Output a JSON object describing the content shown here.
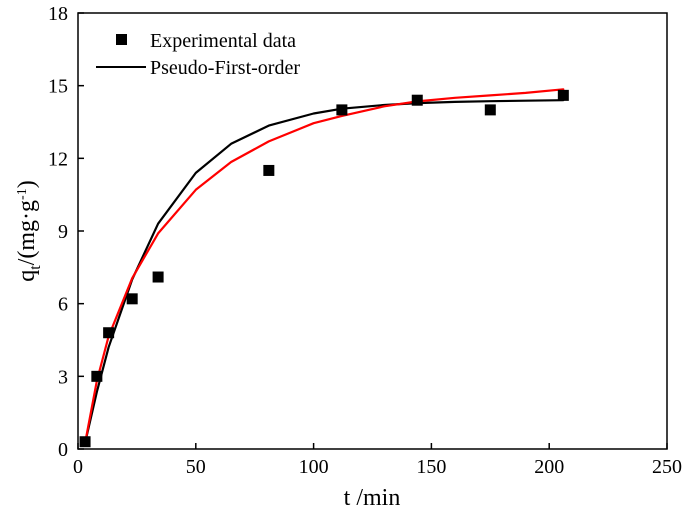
{
  "chart_data": {
    "type": "scatter",
    "title": "",
    "xlabel": "t /min",
    "ylabel_base": "q",
    "ylabel_sub": "t",
    "ylabel_unit": "/(mg·g",
    "ylabel_unit_sup": "-1",
    "ylabel_unit_close": ")",
    "xlim": [
      0,
      250
    ],
    "ylim": [
      0,
      18
    ],
    "xticks": [
      0,
      50,
      100,
      150,
      200,
      250
    ],
    "yticks": [
      0,
      3,
      6,
      9,
      12,
      15,
      18
    ],
    "legend_position": "top-left",
    "series": [
      {
        "name": "Experimental data",
        "kind": "scatter",
        "marker": "square",
        "color": "#000000",
        "x": [
          3,
          8,
          13,
          23,
          34,
          81,
          112,
          144,
          175,
          206
        ],
        "y": [
          0.3,
          3.0,
          4.8,
          6.2,
          7.1,
          11.5,
          14.0,
          14.4,
          14.0,
          14.6
        ]
      },
      {
        "name": "Pseudo-First-order",
        "kind": "line",
        "color": "#000000",
        "x": [
          3,
          8,
          13,
          23,
          34,
          50,
          65,
          81,
          100,
          112,
          130,
          144,
          160,
          175,
          190,
          206
        ],
        "y": [
          0.25,
          2.35,
          4.2,
          7.0,
          9.3,
          11.4,
          12.6,
          13.35,
          13.85,
          14.05,
          14.2,
          14.28,
          14.33,
          14.36,
          14.38,
          14.4
        ]
      },
      {
        "name": "",
        "kind": "line",
        "color": "#ff0000",
        "x": [
          3,
          8,
          13,
          23,
          34,
          50,
          65,
          81,
          100,
          112,
          130,
          144,
          160,
          175,
          190,
          206
        ],
        "y": [
          0.25,
          2.8,
          4.65,
          7.05,
          8.9,
          10.7,
          11.85,
          12.7,
          13.45,
          13.75,
          14.15,
          14.35,
          14.5,
          14.6,
          14.7,
          14.85
        ]
      }
    ]
  }
}
